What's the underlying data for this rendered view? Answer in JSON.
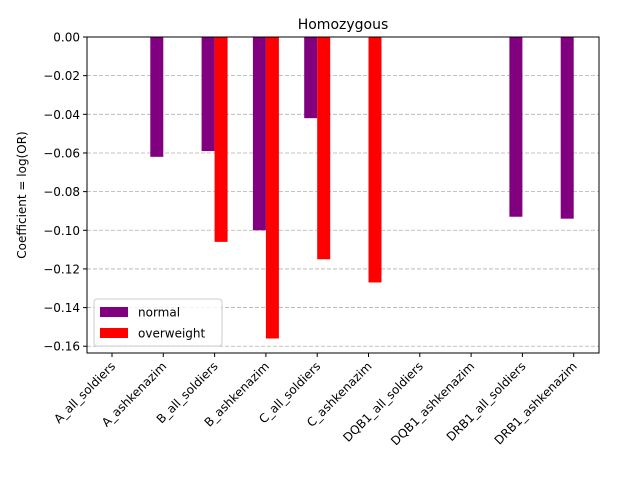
{
  "chart_data": {
    "type": "bar",
    "title": "Homozygous",
    "xlabel": "",
    "ylabel": "Coefficient = log(OR)",
    "categories": [
      "A_all_soldiers",
      "A_ashkenazim",
      "B_all_soldiers",
      "B_ashkenazim",
      "C_all_soldiers",
      "C_ashkenazim",
      "DQB1_all_soldiers",
      "DQB1_ashkenazim",
      "DRB1_all_soldiers",
      "DRB1_ashkenazim"
    ],
    "series": [
      {
        "name": "normal",
        "color": "#800080",
        "values": [
          0,
          -0.062,
          -0.059,
          -0.1,
          -0.042,
          0,
          0,
          0,
          -0.093,
          -0.094
        ]
      },
      {
        "name": "overweight",
        "color": "#ff0000",
        "values": [
          0,
          0,
          -0.106,
          -0.156,
          -0.115,
          -0.127,
          0,
          0,
          0,
          0
        ]
      }
    ],
    "ylim": [
      -0.1635,
      0.0
    ],
    "yticks": [
      0.0,
      -0.02,
      -0.04,
      -0.06,
      -0.08,
      -0.1,
      -0.12,
      -0.14,
      -0.16
    ],
    "ytick_labels": [
      "0.00",
      "−0.02",
      "−0.04",
      "−0.06",
      "−0.08",
      "−0.10",
      "−0.12",
      "−0.14",
      "−0.16"
    ],
    "grid": "y-dashed",
    "legend_position": "lower-left"
  }
}
